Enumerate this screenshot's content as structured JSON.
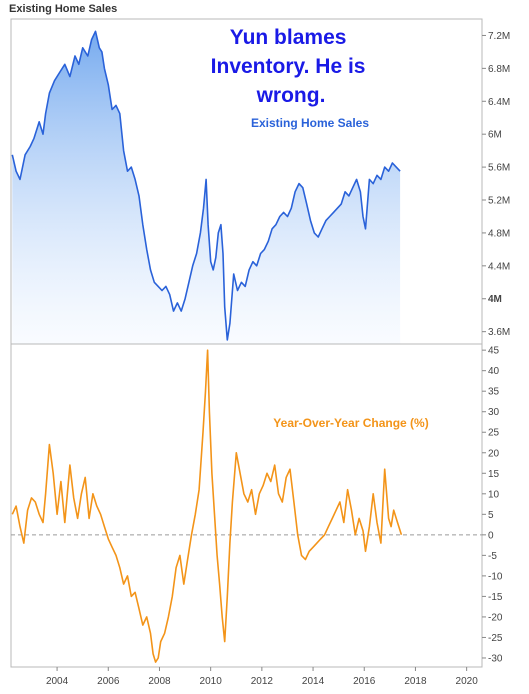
{
  "page": {
    "title": "Existing Home Sales"
  },
  "colors": {
    "sales_line": "#2a62d9",
    "sales_fill_top": "#6fa6ee",
    "sales_fill_bottom": "#eef5ff",
    "yoy_line": "#f39419",
    "headline_text": "#1a1ae6",
    "axis": "#888888",
    "zero_line": "#9a9a9a"
  },
  "chart_data": [
    {
      "type": "area",
      "title": "Existing Home Sales",
      "annotation": "Yun blames Inventory. He is wrong.",
      "annotation_lines": [
        "Yun blames",
        "Inventory. He is",
        "wrong."
      ],
      "series_label": "Existing Home Sales",
      "xlim": [
        2002.2,
        2020.6
      ],
      "ylim": [
        3.45,
        7.4
      ],
      "yticks": [
        3.6,
        4.0,
        4.4,
        4.8,
        5.2,
        5.6,
        6.0,
        6.4,
        6.8,
        7.2
      ],
      "ytick_labels": [
        "3.6M",
        "4M",
        "4.4M",
        "4.8M",
        "5.2M",
        "5.6M",
        "6M",
        "6.4M",
        "6.8M",
        "7.2M"
      ],
      "y_unit": "millions",
      "series": [
        {
          "name": "Existing Home Sales",
          "x": [
            2002.25,
            2002.4,
            2002.55,
            2002.75,
            2002.95,
            2003.1,
            2003.3,
            2003.45,
            2003.55,
            2003.7,
            2003.9,
            2004.1,
            2004.3,
            2004.5,
            2004.7,
            2004.85,
            2005.0,
            2005.2,
            2005.35,
            2005.5,
            2005.65,
            2005.75,
            2005.85,
            2006.0,
            2006.15,
            2006.3,
            2006.45,
            2006.6,
            2006.75,
            2006.9,
            2007.05,
            2007.2,
            2007.35,
            2007.5,
            2007.65,
            2007.8,
            2007.95,
            2008.1,
            2008.25,
            2008.4,
            2008.55,
            2008.7,
            2008.85,
            2009.0,
            2009.15,
            2009.3,
            2009.45,
            2009.6,
            2009.72,
            2009.82,
            2009.9,
            2010.0,
            2010.1,
            2010.2,
            2010.3,
            2010.4,
            2010.48,
            2010.55,
            2010.65,
            2010.75,
            2010.9,
            2011.05,
            2011.2,
            2011.35,
            2011.5,
            2011.65,
            2011.8,
            2011.95,
            2012.1,
            2012.25,
            2012.4,
            2012.55,
            2012.7,
            2012.85,
            2013.0,
            2013.15,
            2013.3,
            2013.45,
            2013.6,
            2013.75,
            2013.9,
            2014.05,
            2014.2,
            2014.35,
            2014.5,
            2014.65,
            2014.8,
            2014.95,
            2015.1,
            2015.25,
            2015.4,
            2015.55,
            2015.7,
            2015.85,
            2015.95,
            2016.05,
            2016.2,
            2016.35,
            2016.5,
            2016.65,
            2016.8,
            2016.95,
            2017.1,
            2017.25,
            2017.4
          ],
          "values": [
            5.75,
            5.55,
            5.45,
            5.75,
            5.85,
            5.95,
            6.15,
            6.0,
            6.25,
            6.5,
            6.65,
            6.75,
            6.85,
            6.7,
            6.95,
            6.85,
            7.05,
            6.95,
            7.15,
            7.25,
            7.05,
            7.0,
            6.8,
            6.6,
            6.3,
            6.35,
            6.25,
            5.8,
            5.55,
            5.6,
            5.45,
            5.25,
            4.9,
            4.6,
            4.35,
            4.2,
            4.15,
            4.1,
            4.15,
            4.05,
            3.85,
            3.95,
            3.85,
            4.0,
            4.2,
            4.4,
            4.55,
            4.8,
            5.1,
            5.45,
            4.9,
            4.45,
            4.35,
            4.5,
            4.8,
            4.9,
            4.55,
            3.9,
            3.5,
            3.7,
            4.3,
            4.1,
            4.2,
            4.15,
            4.35,
            4.45,
            4.4,
            4.55,
            4.6,
            4.7,
            4.85,
            4.9,
            5.0,
            5.05,
            5.0,
            5.1,
            5.3,
            5.4,
            5.35,
            5.15,
            4.95,
            4.8,
            4.75,
            4.85,
            4.95,
            5.0,
            5.05,
            5.1,
            5.15,
            5.3,
            5.25,
            5.35,
            5.45,
            5.3,
            5.0,
            4.85,
            5.45,
            5.4,
            5.5,
            5.45,
            5.6,
            5.55,
            5.65,
            5.6,
            5.55
          ]
        }
      ]
    },
    {
      "type": "line",
      "series_label": "Year-Over-Year Change (%)",
      "xlim": [
        2002.2,
        2020.6
      ],
      "ylim": [
        -32.2,
        46.5
      ],
      "yticks": [
        -30,
        -25,
        -20,
        -15,
        -10,
        -5,
        0,
        5,
        10,
        15,
        20,
        25,
        30,
        35,
        40,
        45
      ],
      "ytick_labels": [
        "-30",
        "-25",
        "-20",
        "-15",
        "-10",
        "-5",
        "0",
        "5",
        "10",
        "15",
        "20",
        "25",
        "30",
        "35",
        "40",
        "45"
      ],
      "reference_line": 0,
      "series": [
        {
          "name": "Year-Over-Year Change (%)",
          "x": [
            2002.25,
            2002.4,
            2002.55,
            2002.7,
            2002.85,
            2003.0,
            2003.15,
            2003.3,
            2003.45,
            2003.55,
            2003.7,
            2003.85,
            2004.0,
            2004.15,
            2004.3,
            2004.5,
            2004.65,
            2004.8,
            2004.95,
            2005.1,
            2005.25,
            2005.4,
            2005.55,
            2005.7,
            2005.85,
            2006.0,
            2006.15,
            2006.3,
            2006.45,
            2006.6,
            2006.75,
            2006.9,
            2007.05,
            2007.2,
            2007.35,
            2007.5,
            2007.65,
            2007.75,
            2007.85,
            2007.95,
            2008.05,
            2008.2,
            2008.35,
            2008.5,
            2008.65,
            2008.8,
            2008.95,
            2009.1,
            2009.25,
            2009.4,
            2009.55,
            2009.7,
            2009.8,
            2009.88,
            2009.95,
            2010.05,
            2010.15,
            2010.25,
            2010.35,
            2010.45,
            2010.55,
            2010.65,
            2010.75,
            2010.85,
            2011.0,
            2011.15,
            2011.3,
            2011.45,
            2011.6,
            2011.75,
            2011.9,
            2012.05,
            2012.2,
            2012.35,
            2012.5,
            2012.65,
            2012.8,
            2012.95,
            2013.1,
            2013.25,
            2013.4,
            2013.55,
            2013.7,
            2013.85,
            2014.0,
            2014.15,
            2014.3,
            2014.45,
            2014.6,
            2014.75,
            2014.9,
            2015.05,
            2015.2,
            2015.35,
            2015.5,
            2015.65,
            2015.8,
            2015.95,
            2016.05,
            2016.2,
            2016.35,
            2016.5,
            2016.65,
            2016.8,
            2016.95,
            2017.05,
            2017.15,
            2017.3,
            2017.45
          ],
          "values": [
            5,
            7,
            2,
            -2,
            6,
            9,
            8,
            5,
            3,
            10,
            22,
            15,
            5,
            13,
            3,
            17,
            9,
            4,
            10,
            14,
            4,
            10,
            7,
            5,
            2,
            -1,
            -3,
            -5,
            -8,
            -12,
            -10,
            -15,
            -14,
            -18,
            -22,
            -20,
            -24,
            -29,
            -31,
            -30,
            -26,
            -24,
            -20,
            -15,
            -8,
            -5,
            -12,
            -6,
            0,
            5,
            11,
            25,
            35,
            45,
            30,
            15,
            5,
            -5,
            -12,
            -20,
            -26,
            -15,
            -2,
            8,
            20,
            15,
            10,
            8,
            11,
            5,
            10,
            12,
            15,
            13,
            17,
            10,
            8,
            14,
            16,
            8,
            0,
            -5,
            -6,
            -4,
            -3,
            -2,
            -1,
            0,
            2,
            4,
            6,
            8,
            3,
            11,
            6,
            0,
            4,
            1,
            -4,
            2,
            10,
            3,
            -2,
            16,
            4,
            2,
            6,
            3,
            0
          ]
        }
      ]
    }
  ],
  "x_axis": {
    "ticks": [
      2004,
      2006,
      2008,
      2010,
      2012,
      2014,
      2016,
      2018,
      2020
    ],
    "tick_labels": [
      "2004",
      "2006",
      "2008",
      "2010",
      "2012",
      "2014",
      "2016",
      "2018",
      "2020"
    ]
  }
}
